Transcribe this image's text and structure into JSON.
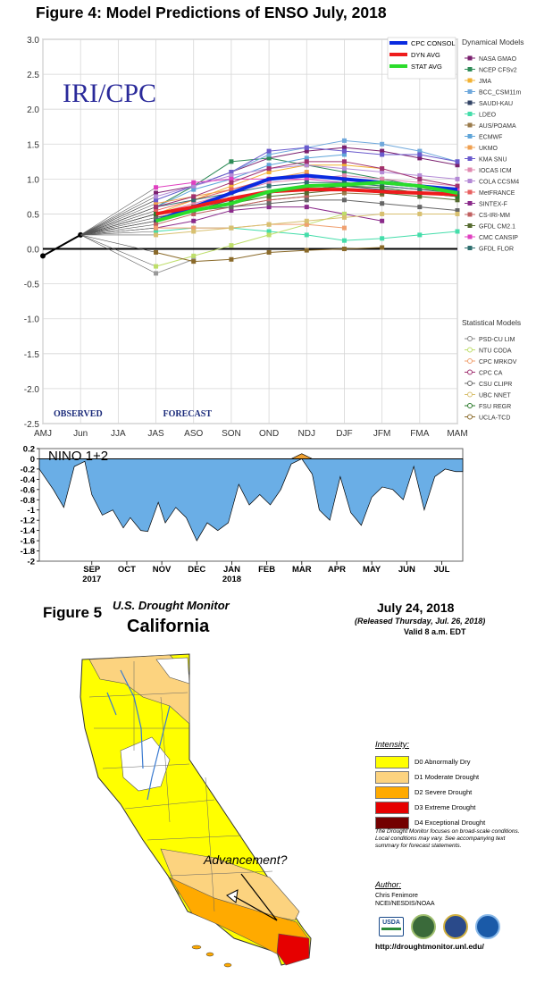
{
  "figure4": {
    "title": "Figure 4:  Model Predictions of ENSO July, 2018"
  },
  "chart_data": [
    {
      "type": "line",
      "title": "Figure 4:  Model Predictions of ENSO July, 2018",
      "watermark": "IRI/CPC",
      "observed_label": "OBSERVED",
      "forecast_label": "FORECAST",
      "ylim": [
        -2.5,
        3.0
      ],
      "grid": true,
      "y_tick_labels": [
        "3.0",
        "2.5",
        "2.0",
        "1.5",
        "1.0",
        "0.5",
        "0.0",
        "-0.5",
        "-1.0",
        "-1.5",
        "-2.0",
        "-2.5"
      ],
      "y_tick_values": [
        3.0,
        2.5,
        2.0,
        1.5,
        1.0,
        0.5,
        0.0,
        -0.5,
        -1.0,
        -1.5,
        -2.0,
        -2.5
      ],
      "categories": [
        "AMJ",
        "Jun",
        "JJA",
        "JAS",
        "ASO",
        "SON",
        "OND",
        "NDJ",
        "DJF",
        "JFM",
        "FMA",
        "MAM"
      ],
      "observed": [
        {
          "x": "AMJ",
          "y": -0.1
        },
        {
          "x": "Jun",
          "y": 0.2
        }
      ],
      "highlight_legend": [
        {
          "name": "CPC CONSOL",
          "color": "#0a2be0"
        },
        {
          "name": "DYN AVG",
          "color": "#ee1c1c"
        },
        {
          "name": "STAT AVG",
          "color": "#2bdc2b"
        }
      ],
      "dynamical_title": "Dynamical Models",
      "dynamical_models": [
        {
          "name": "NASA GMAO",
          "color": "#7a1f6e"
        },
        {
          "name": "NCEP CFSv2",
          "color": "#2e8b57"
        },
        {
          "name": "JMA",
          "color": "#f2b233"
        },
        {
          "name": "BCC_CSM11m",
          "color": "#6fa8dc"
        },
        {
          "name": "SAUDI-KAU",
          "color": "#334466"
        },
        {
          "name": "LDEO",
          "color": "#44ddaa"
        },
        {
          "name": "AUS/POAMA",
          "color": "#9a7a4a"
        },
        {
          "name": "ECMWF",
          "color": "#5fa5d9"
        },
        {
          "name": "UKMO",
          "color": "#f0a050"
        },
        {
          "name": "KMA SNU",
          "color": "#6a5acd"
        },
        {
          "name": "IOCAS ICM",
          "color": "#e08ab0"
        },
        {
          "name": "COLA CCSM4",
          "color": "#b48ad6"
        },
        {
          "name": "MetFRANCE",
          "color": "#e86060"
        },
        {
          "name": "SINTEX-F",
          "color": "#8a2a8a"
        },
        {
          "name": "CS-IRI-MM",
          "color": "#c06060"
        },
        {
          "name": "GFDL CM2.1",
          "color": "#556b2f"
        },
        {
          "name": "CMC CANSIP",
          "color": "#e040c0"
        },
        {
          "name": "GFDL FLOR",
          "color": "#2f6f6f"
        }
      ],
      "statistical_title": "Statistical Models",
      "statistical_models": [
        {
          "name": "PSD-CU LIM",
          "color": "#888888"
        },
        {
          "name": "NTU CODA",
          "color": "#bede6a"
        },
        {
          "name": "CPC MRKOV",
          "color": "#f0a070"
        },
        {
          "name": "CPC CA",
          "color": "#a03070"
        },
        {
          "name": "CSU CLIPR",
          "color": "#666666"
        },
        {
          "name": "UBC NNET",
          "color": "#d8c070"
        },
        {
          "name": "FSU REGR",
          "color": "#2a7a2a"
        },
        {
          "name": "UCLA-TCD",
          "color": "#8a6a2a"
        }
      ],
      "series": [
        {
          "name": "CPC CONSOL",
          "color": "#0a2be0",
          "width": 4,
          "values": [
            null,
            null,
            null,
            0.4,
            0.6,
            0.8,
            1.0,
            1.05,
            1.0,
            0.95,
            0.9,
            0.85
          ]
        },
        {
          "name": "DYN AVG",
          "color": "#ee1c1c",
          "width": 4,
          "values": [
            null,
            null,
            null,
            0.5,
            0.6,
            0.72,
            0.82,
            0.85,
            0.85,
            0.82,
            0.8,
            0.78
          ]
        },
        {
          "name": "STAT AVG",
          "color": "#2bdc2b",
          "width": 4,
          "values": [
            null,
            null,
            null,
            0.4,
            0.55,
            0.65,
            0.82,
            0.9,
            0.92,
            0.95,
            0.9,
            0.8
          ]
        },
        {
          "name": "NASA GMAO",
          "color": "#7a1f6e",
          "width": 1,
          "values": [
            null,
            null,
            null,
            0.8,
            0.9,
            1.1,
            1.3,
            1.4,
            1.45,
            1.4,
            1.3,
            1.2
          ]
        },
        {
          "name": "NCEP CFSv2",
          "color": "#2e8b57",
          "width": 1,
          "values": [
            null,
            null,
            null,
            0.6,
            0.9,
            1.25,
            1.3,
            1.2,
            1.1,
            1.0,
            0.9,
            0.8
          ]
        },
        {
          "name": "JMA",
          "color": "#f2b233",
          "width": 1,
          "values": [
            null,
            null,
            null,
            0.5,
            0.7,
            0.9,
            1.1,
            1.2,
            1.2,
            1.15,
            null,
            null
          ]
        },
        {
          "name": "BCC_CSM11m",
          "color": "#6fa8dc",
          "width": 1,
          "values": [
            null,
            null,
            null,
            0.7,
            0.9,
            1.1,
            1.35,
            1.45,
            1.55,
            1.5,
            1.4,
            1.25
          ]
        },
        {
          "name": "SAUDI-KAU",
          "color": "#334466",
          "width": 1,
          "values": [
            null,
            null,
            null,
            0.4,
            0.55,
            0.7,
            0.8,
            0.85,
            0.9,
            0.85,
            0.8,
            0.75
          ]
        },
        {
          "name": "LDEO",
          "color": "#44ddaa",
          "width": 1,
          "values": [
            null,
            null,
            null,
            0.25,
            0.3,
            0.3,
            0.25,
            0.2,
            0.12,
            0.15,
            0.2,
            0.25
          ]
        },
        {
          "name": "AUS/POAMA",
          "color": "#9a7a4a",
          "width": 1,
          "values": [
            null,
            null,
            null,
            0.5,
            0.55,
            0.6,
            0.7,
            0.75,
            0.8,
            0.78,
            null,
            null
          ]
        },
        {
          "name": "ECMWF",
          "color": "#5fa5d9",
          "width": 1,
          "values": [
            null,
            null,
            null,
            0.6,
            0.85,
            1.0,
            1.2,
            1.3,
            1.35,
            null,
            null,
            null
          ]
        },
        {
          "name": "UKMO",
          "color": "#f0a050",
          "width": 1,
          "values": [
            null,
            null,
            null,
            0.65,
            0.75,
            0.85,
            1.0,
            1.1,
            null,
            null,
            null,
            null
          ]
        },
        {
          "name": "KMA SNU",
          "color": "#6a5acd",
          "width": 1,
          "values": [
            null,
            null,
            null,
            0.7,
            0.9,
            1.1,
            1.4,
            1.45,
            1.4,
            1.35,
            1.35,
            1.25
          ]
        },
        {
          "name": "IOCAS ICM",
          "color": "#e08ab0",
          "width": 1,
          "values": [
            null,
            null,
            null,
            0.5,
            0.65,
            0.8,
            0.95,
            1.0,
            1.05,
            1.0,
            0.95,
            0.9
          ]
        },
        {
          "name": "COLA CCSM4",
          "color": "#b48ad6",
          "width": 1,
          "values": [
            null,
            null,
            null,
            0.75,
            0.9,
            1.05,
            1.15,
            1.2,
            1.15,
            1.1,
            1.05,
            1.0
          ]
        },
        {
          "name": "MetFRANCE",
          "color": "#e86060",
          "width": 1,
          "values": [
            null,
            null,
            null,
            0.55,
            0.7,
            0.85,
            1.0,
            1.05,
            1.0,
            0.95,
            0.9,
            0.85
          ]
        },
        {
          "name": "SINTEX-F",
          "color": "#8a2a8a",
          "width": 1,
          "values": [
            null,
            null,
            null,
            0.3,
            0.4,
            0.55,
            0.6,
            0.6,
            0.5,
            0.4,
            null,
            null
          ]
        },
        {
          "name": "CS-IRI-MM",
          "color": "#c06060",
          "width": 1,
          "values": [
            null,
            null,
            null,
            0.35,
            0.5,
            0.6,
            0.7,
            0.75,
            null,
            null,
            null,
            null
          ]
        },
        {
          "name": "GFDL CM2.1",
          "color": "#556b2f",
          "width": 1,
          "values": [
            null,
            null,
            null,
            0.45,
            0.55,
            0.65,
            0.75,
            0.8,
            0.85,
            0.8,
            0.75,
            0.7
          ]
        },
        {
          "name": "CMC CANSIP",
          "color": "#e040c0",
          "width": 1,
          "values": [
            null,
            null,
            null,
            0.88,
            0.95,
            1.0,
            1.0,
            1.0,
            0.95,
            0.9,
            0.85,
            0.85
          ]
        },
        {
          "name": "GFDL FLOR",
          "color": "#2f6f6f",
          "width": 1,
          "values": [
            null,
            null,
            null,
            0.6,
            0.7,
            0.8,
            0.9,
            0.95,
            0.95,
            0.9,
            0.85,
            0.8
          ]
        },
        {
          "name": "PSD-CU LIM",
          "color": "#999999",
          "width": 1,
          "values": [
            null,
            null,
            null,
            -0.35,
            -0.15,
            null,
            null,
            null,
            null,
            null,
            null,
            null
          ]
        },
        {
          "name": "NTU CODA",
          "color": "#bede6a",
          "width": 1,
          "values": [
            null,
            null,
            null,
            -0.25,
            -0.1,
            0.05,
            0.2,
            0.35,
            0.5,
            null,
            null,
            null
          ]
        },
        {
          "name": "CPC MRKOV",
          "color": "#f0a070",
          "width": 1,
          "values": [
            null,
            null,
            null,
            0.3,
            0.3,
            0.3,
            0.35,
            0.35,
            0.3,
            null,
            null,
            null
          ]
        },
        {
          "name": "CPC CA",
          "color": "#a03070",
          "width": 1,
          "values": [
            null,
            null,
            null,
            0.6,
            0.75,
            0.95,
            1.15,
            1.25,
            1.25,
            1.15,
            1.0,
            0.9
          ]
        },
        {
          "name": "CSU CLIPR",
          "color": "#666666",
          "width": 1,
          "values": [
            null,
            null,
            null,
            0.45,
            0.55,
            0.6,
            0.65,
            0.7,
            0.7,
            0.65,
            0.6,
            0.55
          ]
        },
        {
          "name": "UBC NNET",
          "color": "#d8c070",
          "width": 1,
          "values": [
            null,
            null,
            null,
            0.2,
            0.25,
            0.3,
            0.35,
            0.4,
            0.45,
            0.5,
            0.5,
            0.5
          ]
        },
        {
          "name": "FSU REGR",
          "color": "#2a7a2a",
          "width": 1,
          "values": [
            null,
            null,
            null,
            0.5,
            0.6,
            0.7,
            0.8,
            0.85,
            0.9,
            0.88,
            0.8,
            0.75
          ]
        },
        {
          "name": "UCLA-TCD",
          "color": "#8a6a2a",
          "width": 1,
          "values": [
            null,
            null,
            null,
            -0.05,
            -0.18,
            -0.15,
            -0.05,
            -0.02,
            0.0,
            0.02,
            null,
            null
          ]
        }
      ]
    },
    {
      "type": "area",
      "title": "NINO 1+2",
      "ylim": [
        -2.0,
        0.2
      ],
      "y_tick_labels": [
        "0.2",
        "0",
        "-0.2",
        "-0.4",
        "-0.6",
        "-0.8",
        "-1",
        "-1.2",
        "-1.4",
        "-1.6",
        "-1.8",
        "-2"
      ],
      "y_tick_values": [
        0.2,
        0,
        -0.2,
        -0.4,
        -0.6,
        -0.8,
        -1.0,
        -1.2,
        -1.4,
        -1.6,
        -1.8,
        -2.0
      ],
      "x_tick_labels": [
        "SEP",
        "OCT",
        "NOV",
        "DEC",
        "JAN",
        "FEB",
        "MAR",
        "APR",
        "MAY",
        "JUN",
        "JUL"
      ],
      "x_tick_positions": [
        0.5,
        1.5,
        2.5,
        3.5,
        4.5,
        5.5,
        6.5,
        7.5,
        8.5,
        9.5,
        10.5
      ],
      "x_year_labels": [
        {
          "label": "2017",
          "at": 0.5
        },
        {
          "label": "2018",
          "at": 4.5
        }
      ],
      "x_range": [
        -1.0,
        11.1
      ],
      "fill_negative": "#6aaee6",
      "fill_positive": "#f0a030",
      "x": [
        -1.0,
        -0.6,
        -0.3,
        0.0,
        0.3,
        0.5,
        0.8,
        1.1,
        1.4,
        1.6,
        1.9,
        2.1,
        2.4,
        2.6,
        2.9,
        3.2,
        3.5,
        3.8,
        4.1,
        4.4,
        4.7,
        5.0,
        5.3,
        5.6,
        5.9,
        6.2,
        6.5,
        6.8,
        7.0,
        7.3,
        7.6,
        7.9,
        8.2,
        8.5,
        8.8,
        9.1,
        9.4,
        9.7,
        10.0,
        10.3,
        10.6,
        10.9,
        11.1
      ],
      "y": [
        -0.2,
        -0.6,
        -0.95,
        -0.15,
        -0.05,
        -0.7,
        -1.1,
        -1.0,
        -1.35,
        -1.15,
        -1.4,
        -1.42,
        -0.85,
        -1.25,
        -0.95,
        -1.15,
        -1.6,
        -1.25,
        -1.4,
        -1.25,
        -0.5,
        -0.9,
        -0.7,
        -0.9,
        -0.6,
        -0.1,
        0.1,
        -0.3,
        -1.0,
        -1.2,
        -0.35,
        -1.05,
        -1.3,
        -0.75,
        -0.55,
        -0.6,
        -0.8,
        -0.15,
        -1.0,
        -0.35,
        -0.2,
        -0.25,
        -0.25
      ]
    }
  ],
  "figure5": {
    "label": "Figure 5",
    "subtitle": "U.S. Drought Monitor",
    "state": "California",
    "date": "July 24, 2018",
    "released": "(Released Thursday, Jul. 26, 2018)",
    "valid": "Valid 8 a.m. EDT",
    "annotation": "Advancement?",
    "legend_title": "Intensity:",
    "legend": [
      {
        "label": "D0 Abnormally Dry",
        "color": "#ffff00"
      },
      {
        "label": "D1 Moderate Drought",
        "color": "#fcd37f"
      },
      {
        "label": "D2 Severe Drought",
        "color": "#ffaa00"
      },
      {
        "label": "D3 Extreme Drought",
        "color": "#e60000"
      },
      {
        "label": "D4 Exceptional Drought",
        "color": "#730000"
      }
    ],
    "note": "The Drought Monitor focuses on broad-scale conditions. Local conditions may vary. See accompanying text summary for forecast statements.",
    "author_title": "Author:",
    "author_name": "Chris Fenimore",
    "author_org": "NCEI/NESDIS/NOAA",
    "logos": [
      "USDA",
      "drought-center",
      "commerce",
      "noaa"
    ],
    "url": "http://droughtmonitor.unl.edu/"
  }
}
